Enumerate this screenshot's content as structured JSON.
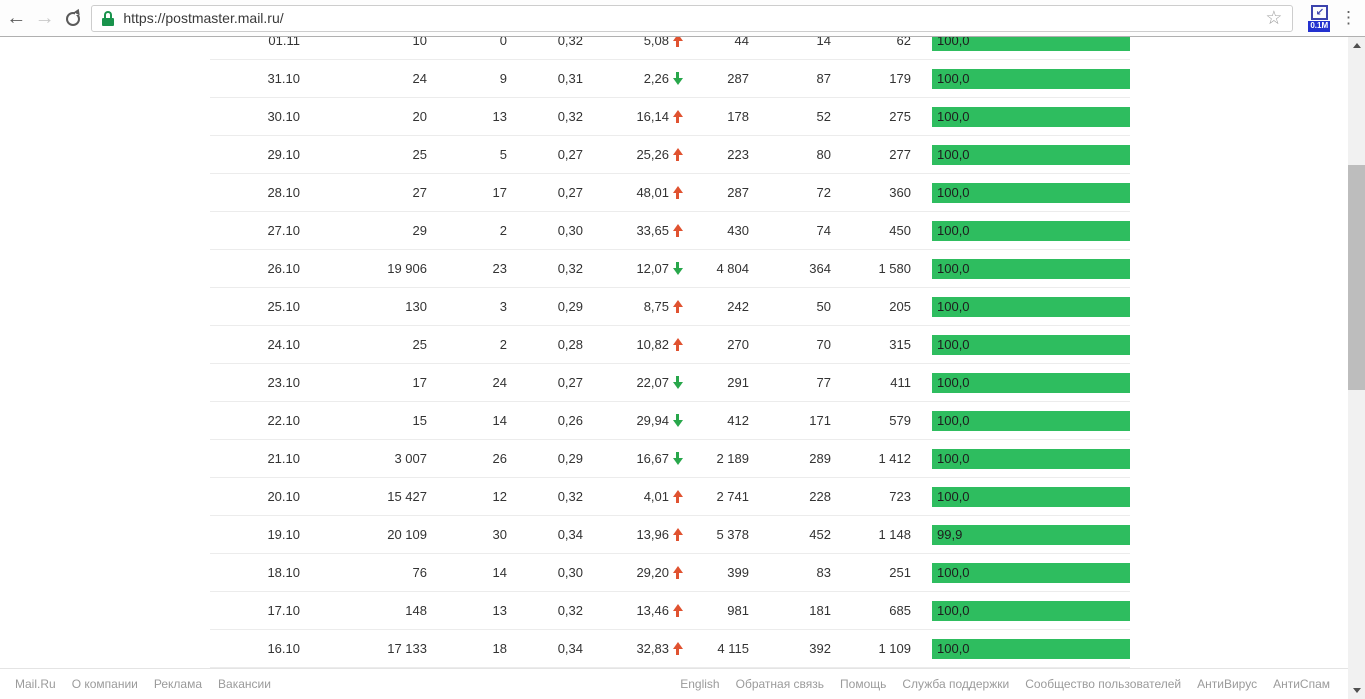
{
  "browser": {
    "url": "https://postmaster.mail.ru/",
    "extension_badge": "0.1M",
    "icons": {
      "back": "←",
      "forward": "→",
      "star": "☆",
      "menu": "⋮",
      "ext_arrow": "↙"
    }
  },
  "colors": {
    "bar_green": "#2ebd5f",
    "trend_up": "#e05230",
    "trend_down": "#28a74b",
    "lock_green": "#19934c",
    "extension_blue": "#3c43ad"
  },
  "table": {
    "rows": [
      {
        "date": "01.11",
        "c1": "10",
        "c2": "0",
        "c3": "0,32",
        "delta": "5,08",
        "trend": "up",
        "c5": "44",
        "c6": "14",
        "c7": "62",
        "bar_label": "100,0",
        "bar_percent": 100
      },
      {
        "date": "31.10",
        "c1": "24",
        "c2": "9",
        "c3": "0,31",
        "delta": "2,26",
        "trend": "down",
        "c5": "287",
        "c6": "87",
        "c7": "179",
        "bar_label": "100,0",
        "bar_percent": 100
      },
      {
        "date": "30.10",
        "c1": "20",
        "c2": "13",
        "c3": "0,32",
        "delta": "16,14",
        "trend": "up",
        "c5": "178",
        "c6": "52",
        "c7": "275",
        "bar_label": "100,0",
        "bar_percent": 100
      },
      {
        "date": "29.10",
        "c1": "25",
        "c2": "5",
        "c3": "0,27",
        "delta": "25,26",
        "trend": "up",
        "c5": "223",
        "c6": "80",
        "c7": "277",
        "bar_label": "100,0",
        "bar_percent": 100
      },
      {
        "date": "28.10",
        "c1": "27",
        "c2": "17",
        "c3": "0,27",
        "delta": "48,01",
        "trend": "up",
        "c5": "287",
        "c6": "72",
        "c7": "360",
        "bar_label": "100,0",
        "bar_percent": 100
      },
      {
        "date": "27.10",
        "c1": "29",
        "c2": "2",
        "c3": "0,30",
        "delta": "33,65",
        "trend": "up",
        "c5": "430",
        "c6": "74",
        "c7": "450",
        "bar_label": "100,0",
        "bar_percent": 100
      },
      {
        "date": "26.10",
        "c1": "19 906",
        "c2": "23",
        "c3": "0,32",
        "delta": "12,07",
        "trend": "down",
        "c5": "4 804",
        "c6": "364",
        "c7": "1 580",
        "bar_label": "100,0",
        "bar_percent": 100
      },
      {
        "date": "25.10",
        "c1": "130",
        "c2": "3",
        "c3": "0,29",
        "delta": "8,75",
        "trend": "up",
        "c5": "242",
        "c6": "50",
        "c7": "205",
        "bar_label": "100,0",
        "bar_percent": 100
      },
      {
        "date": "24.10",
        "c1": "25",
        "c2": "2",
        "c3": "0,28",
        "delta": "10,82",
        "trend": "up",
        "c5": "270",
        "c6": "70",
        "c7": "315",
        "bar_label": "100,0",
        "bar_percent": 100
      },
      {
        "date": "23.10",
        "c1": "17",
        "c2": "24",
        "c3": "0,27",
        "delta": "22,07",
        "trend": "down",
        "c5": "291",
        "c6": "77",
        "c7": "411",
        "bar_label": "100,0",
        "bar_percent": 100
      },
      {
        "date": "22.10",
        "c1": "15",
        "c2": "14",
        "c3": "0,26",
        "delta": "29,94",
        "trend": "down",
        "c5": "412",
        "c6": "171",
        "c7": "579",
        "bar_label": "100,0",
        "bar_percent": 100
      },
      {
        "date": "21.10",
        "c1": "3 007",
        "c2": "26",
        "c3": "0,29",
        "delta": "16,67",
        "trend": "down",
        "c5": "2 189",
        "c6": "289",
        "c7": "1 412",
        "bar_label": "100,0",
        "bar_percent": 100
      },
      {
        "date": "20.10",
        "c1": "15 427",
        "c2": "12",
        "c3": "0,32",
        "delta": "4,01",
        "trend": "up",
        "c5": "2 741",
        "c6": "228",
        "c7": "723",
        "bar_label": "100,0",
        "bar_percent": 100
      },
      {
        "date": "19.10",
        "c1": "20 109",
        "c2": "30",
        "c3": "0,34",
        "delta": "13,96",
        "trend": "up",
        "c5": "5 378",
        "c6": "452",
        "c7": "1 148",
        "bar_label": "99,9",
        "bar_percent": 99.9
      },
      {
        "date": "18.10",
        "c1": "76",
        "c2": "14",
        "c3": "0,30",
        "delta": "29,20",
        "trend": "up",
        "c5": "399",
        "c6": "83",
        "c7": "251",
        "bar_label": "100,0",
        "bar_percent": 100
      },
      {
        "date": "17.10",
        "c1": "148",
        "c2": "13",
        "c3": "0,32",
        "delta": "13,46",
        "trend": "up",
        "c5": "981",
        "c6": "181",
        "c7": "685",
        "bar_label": "100,0",
        "bar_percent": 100
      },
      {
        "date": "16.10",
        "c1": "17 133",
        "c2": "18",
        "c3": "0,34",
        "delta": "32,83",
        "trend": "up",
        "c5": "4 115",
        "c6": "392",
        "c7": "1 109",
        "bar_label": "100,0",
        "bar_percent": 100
      }
    ]
  },
  "footer": {
    "left_links": [
      "Mail.Ru",
      "О компании",
      "Реклама",
      "Вакансии"
    ],
    "right_links": [
      "English",
      "Обратная связь",
      "Помощь",
      "Служба поддержки",
      "Сообщество пользователей",
      "АнтиВирус",
      "АнтиСпам"
    ]
  }
}
